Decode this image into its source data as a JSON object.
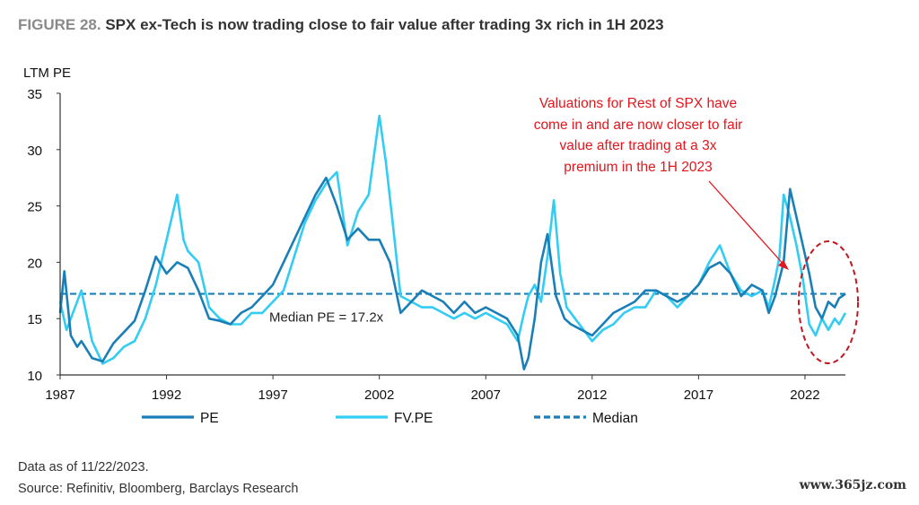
{
  "header": {
    "figure_label": "FIGURE 28.",
    "title_text": "SPX ex-Tech is now trading close to fair value after trading 3x rich in 1H 2023"
  },
  "footer": {
    "data_note": "Data as of 11/22/2023.",
    "source": "Source: Refinitiv, Bloomberg, Barclays Research"
  },
  "watermark": "www.365jz.com",
  "annotation": {
    "lines": [
      "Valuations for Rest of SPX have",
      "come in and are now closer to fair",
      "value after trading at a 3x",
      "premium in the 1H 2023"
    ]
  },
  "median_label": "Median PE = 17.2x",
  "colors": {
    "pe": "#1a7fb6",
    "fv_pe": "#33ccf2",
    "median": "#1a7fb6",
    "annotation": "#e3161d"
  },
  "chart_data": {
    "type": "line",
    "ylabel": "LTM PE",
    "ylim": [
      10,
      35
    ],
    "xlim": [
      1987,
      2023.9
    ],
    "y_ticks": [
      "10",
      "15",
      "20",
      "25",
      "30",
      "35"
    ],
    "x_ticks": [
      "1987",
      "1992",
      "1997",
      "2002",
      "2007",
      "2012",
      "2017",
      "2022"
    ],
    "legend": [
      "PE",
      "FV.PE",
      "Median"
    ],
    "legend_position": "bottom",
    "median": 17.2,
    "series": [
      {
        "name": "PE",
        "x": [
          1987.0,
          1987.2,
          1987.5,
          1987.8,
          1988.0,
          1988.5,
          1989.0,
          1989.5,
          1990.0,
          1990.5,
          1991.0,
          1991.5,
          1992.0,
          1992.5,
          1993.0,
          1993.5,
          1994.0,
          1994.5,
          1995.0,
          1995.5,
          1996.0,
          1996.5,
          1997.0,
          1997.5,
          1998.0,
          1998.5,
          1999.0,
          1999.5,
          2000.0,
          2000.5,
          2001.0,
          2001.5,
          2002.0,
          2002.5,
          2003.0,
          2003.5,
          2004.0,
          2004.5,
          2005.0,
          2005.5,
          2006.0,
          2006.5,
          2007.0,
          2007.5,
          2008.0,
          2008.5,
          2008.8,
          2009.0,
          2009.3,
          2009.6,
          2009.9,
          2010.3,
          2010.7,
          2011.0,
          2011.5,
          2012.0,
          2012.5,
          2013.0,
          2013.5,
          2014.0,
          2014.5,
          2015.0,
          2015.5,
          2016.0,
          2016.5,
          2017.0,
          2017.5,
          2018.0,
          2018.5,
          2019.0,
          2019.5,
          2020.0,
          2020.3,
          2020.6,
          2021.0,
          2021.3,
          2021.6,
          2021.9,
          2022.2,
          2022.5,
          2022.8,
          2023.1,
          2023.4,
          2023.6,
          2023.9
        ],
        "values": [
          15.5,
          19.2,
          13.5,
          12.5,
          13.0,
          11.5,
          11.2,
          12.8,
          13.8,
          14.8,
          17.5,
          20.5,
          19.0,
          20.0,
          19.5,
          17.5,
          15.0,
          14.8,
          14.5,
          15.5,
          16.0,
          17.0,
          18.0,
          20.0,
          22.0,
          24.0,
          26.0,
          27.5,
          25.0,
          22.0,
          23.0,
          22.0,
          22.0,
          20.0,
          15.5,
          16.5,
          17.5,
          17.0,
          16.5,
          15.5,
          16.5,
          15.5,
          16.0,
          15.5,
          15.0,
          13.5,
          10.5,
          11.5,
          15.0,
          20.0,
          22.5,
          17.0,
          15.0,
          14.5,
          14.0,
          13.5,
          14.5,
          15.5,
          16.0,
          16.5,
          17.5,
          17.5,
          17.0,
          16.5,
          17.0,
          18.0,
          19.5,
          20.0,
          19.0,
          17.0,
          18.0,
          17.5,
          15.5,
          17.0,
          20.0,
          26.5,
          24.0,
          21.5,
          19.0,
          16.0,
          15.0,
          16.5,
          16.0,
          16.8,
          17.2
        ]
      },
      {
        "name": "FV.PE",
        "x": [
          1987.0,
          1987.3,
          1987.6,
          1988.0,
          1988.5,
          1989.0,
          1989.5,
          1990.0,
          1990.5,
          1991.0,
          1991.5,
          1992.0,
          1992.5,
          1992.8,
          1993.0,
          1993.5,
          1994.0,
          1994.5,
          1995.0,
          1995.5,
          1996.0,
          1996.5,
          1997.0,
          1997.5,
          1998.0,
          1998.5,
          1999.0,
          1999.5,
          2000.0,
          2000.5,
          2001.0,
          2001.5,
          2002.0,
          2002.3,
          2002.6,
          2003.0,
          2003.5,
          2004.0,
          2004.5,
          2005.0,
          2005.5,
          2006.0,
          2006.5,
          2007.0,
          2007.5,
          2008.0,
          2008.5,
          2008.8,
          2009.0,
          2009.3,
          2009.6,
          2009.9,
          2010.2,
          2010.5,
          2010.8,
          2011.2,
          2011.6,
          2012.0,
          2012.5,
          2013.0,
          2013.5,
          2014.0,
          2014.5,
          2015.0,
          2015.5,
          2016.0,
          2016.5,
          2017.0,
          2017.5,
          2018.0,
          2018.5,
          2019.0,
          2019.5,
          2020.0,
          2020.3,
          2020.6,
          2020.8,
          2021.0,
          2021.3,
          2021.6,
          2021.9,
          2022.2,
          2022.5,
          2022.8,
          2023.1,
          2023.4,
          2023.6,
          2023.9
        ],
        "values": [
          16.5,
          14.0,
          15.5,
          17.5,
          13.0,
          11.0,
          11.5,
          12.5,
          13.0,
          15.0,
          18.0,
          22.0,
          26.0,
          22.0,
          21.0,
          20.0,
          16.0,
          15.0,
          14.5,
          14.5,
          15.5,
          15.5,
          16.5,
          17.5,
          20.5,
          23.5,
          25.5,
          27.0,
          28.0,
          21.5,
          24.5,
          26.0,
          33.0,
          29.0,
          24.0,
          17.0,
          16.5,
          16.0,
          16.0,
          15.5,
          15.0,
          15.5,
          15.0,
          15.5,
          15.0,
          14.5,
          13.0,
          15.5,
          17.0,
          18.0,
          16.5,
          20.5,
          25.5,
          19.0,
          16.0,
          15.0,
          14.0,
          13.0,
          14.0,
          14.5,
          15.5,
          16.0,
          16.0,
          17.5,
          17.0,
          16.0,
          17.0,
          18.0,
          20.0,
          21.5,
          19.0,
          17.5,
          17.0,
          17.5,
          16.0,
          18.5,
          20.5,
          26.0,
          24.0,
          21.5,
          18.5,
          14.5,
          13.5,
          15.0,
          14.0,
          15.0,
          14.5,
          15.5
        ]
      }
    ]
  }
}
